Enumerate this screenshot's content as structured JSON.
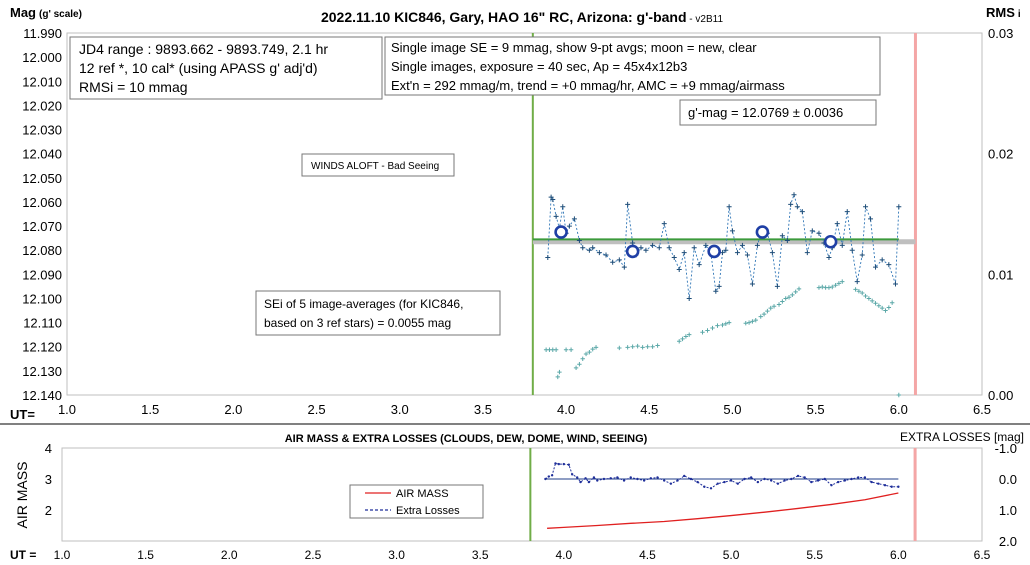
{
  "chart_data": [
    {
      "type": "scatter",
      "title": "2022.11.10 KIC846, Gary, HAO 16\" RC, Arizona: g'-band",
      "title_version": " - v2B11",
      "ylabel": "Mag",
      "ylabel_scale": "(g' scale)",
      "y2label": "RMS",
      "y2label_sub": "i",
      "xlabel": "UT=",
      "xlim": [
        1.0,
        6.5
      ],
      "ylim": [
        12.14,
        11.99
      ],
      "y2lim": [
        0.0,
        0.03
      ],
      "x_ticks": [
        "1.0",
        "1.5",
        "2.0",
        "2.5",
        "3.0",
        "3.5",
        "4.0",
        "4.5",
        "5.0",
        "5.5",
        "6.0",
        "6.5"
      ],
      "y_ticks": [
        "11.990",
        "12.000",
        "12.010",
        "12.020",
        "12.030",
        "12.040",
        "12.050",
        "12.060",
        "12.070",
        "12.080",
        "12.090",
        "12.100",
        "12.110",
        "12.120",
        "12.130",
        "12.140"
      ],
      "y2_ticks": [
        "0.03",
        "0.02",
        "0.01",
        "0.00"
      ],
      "annotations": {
        "box1": [
          "JD4 range : 9893.662 - 9893.749,  2.1 hr",
          "12 ref *, 10 cal* (using APASS g' adj'd)",
          "RMSi = 10 mmag"
        ],
        "box2": [
          "Single image SE = 9 mmag, show  9-pt avgs; moon = new, clear",
          "Single images, exposure = 40 sec, Ap = 45x4x12b3",
          "Ext'n = 292 mmag/m, trend = +0 mmag/hr, AMC = +9 mmag/airmass"
        ],
        "gmag": "g'-mag = 12.0769 ± 0.0036",
        "winds": "WINDS ALOFT - Bad Seeing",
        "sei": [
          "SEi of 5 image-averages (for KIC846,",
          "based on 3 ref stars) = 0.0055 mag"
        ]
      },
      "lines": {
        "start_ut": 3.8,
        "end_ut": 6.1,
        "mean_mag": 12.0765,
        "fit_mag": 12.0755
      },
      "series": [
        {
          "kind": "single_images_mag",
          "x": [
            3.89,
            3.91,
            3.92,
            3.94,
            3.96,
            3.98,
            4.0,
            4.02,
            4.05,
            4.08,
            4.1,
            4.14,
            4.16,
            4.2,
            4.24,
            4.28,
            4.32,
            4.35,
            4.37,
            4.4,
            4.42,
            4.45,
            4.48,
            4.52,
            4.56,
            4.59,
            4.62,
            4.65,
            4.68,
            4.71,
            4.74,
            4.77,
            4.8,
            4.84,
            4.87,
            4.9,
            4.92,
            4.94,
            4.96,
            4.98,
            5.0,
            5.03,
            5.06,
            5.09,
            5.12,
            5.15,
            5.18,
            5.21,
            5.24,
            5.27,
            5.3,
            5.33,
            5.35,
            5.37,
            5.39,
            5.42,
            5.45,
            5.48,
            5.52,
            5.55,
            5.58,
            5.6,
            5.63,
            5.66,
            5.69,
            5.72,
            5.75,
            5.78,
            5.8,
            5.83,
            5.86,
            5.9,
            5.94,
            5.98,
            6.0
          ],
          "y": [
            12.083,
            12.058,
            12.059,
            12.066,
            12.071,
            12.062,
            12.073,
            12.07,
            12.067,
            12.076,
            12.079,
            12.08,
            12.079,
            12.081,
            12.082,
            12.085,
            12.084,
            12.087,
            12.061,
            12.077,
            12.082,
            12.079,
            12.08,
            12.078,
            12.079,
            12.069,
            12.079,
            12.083,
            12.088,
            12.081,
            12.1,
            12.079,
            12.086,
            12.078,
            12.081,
            12.097,
            12.095,
            12.081,
            12.08,
            12.062,
            12.072,
            12.081,
            12.078,
            12.082,
            12.094,
            12.078,
            12.071,
            12.073,
            12.081,
            12.095,
            12.074,
            12.076,
            12.061,
            12.057,
            12.062,
            12.064,
            12.081,
            12.072,
            12.073,
            12.077,
            12.083,
            12.079,
            12.069,
            12.078,
            12.064,
            12.08,
            12.093,
            12.082,
            12.062,
            12.067,
            12.087,
            12.084,
            12.086,
            12.094,
            12.062
          ]
        },
        {
          "kind": "nine_point_averages_mag",
          "x": [
            3.97,
            4.4,
            4.89,
            5.18,
            5.59
          ],
          "y": [
            12.0725,
            12.0805,
            12.0805,
            12.0725,
            12.0765
          ]
        },
        {
          "kind": "rmsi_secondary",
          "x": [
            3.88,
            3.9,
            3.92,
            3.94,
            3.95,
            3.96,
            4.0,
            4.03,
            4.06,
            4.08,
            4.1,
            4.12,
            4.14,
            4.16,
            4.18,
            4.32,
            4.37,
            4.4,
            4.43,
            4.46,
            4.49,
            4.52,
            4.55,
            4.68,
            4.7,
            4.72,
            4.74,
            4.82,
            4.85,
            4.88,
            4.91,
            4.94,
            4.96,
            4.98,
            5.08,
            5.1,
            5.12,
            5.14,
            5.17,
            5.19,
            5.21,
            5.23,
            5.25,
            5.28,
            5.3,
            5.32,
            5.34,
            5.36,
            5.38,
            5.4,
            5.52,
            5.54,
            5.56,
            5.58,
            5.6,
            5.62,
            5.64,
            5.66,
            5.74,
            5.76,
            5.78,
            5.8,
            5.82,
            5.84,
            5.86,
            5.88,
            5.9,
            5.92,
            5.94,
            5.96,
            6.0
          ],
          "y": [
            0.00375,
            0.00375,
            0.00375,
            0.00375,
            0.0015,
            0.0019,
            0.00375,
            0.00375,
            0.00225,
            0.00255,
            0.003,
            0.0034,
            0.00355,
            0.0038,
            0.00395,
            0.0039,
            0.00395,
            0.004,
            0.00405,
            0.00395,
            0.004,
            0.004,
            0.0041,
            0.00445,
            0.00465,
            0.00485,
            0.005,
            0.0052,
            0.00535,
            0.00555,
            0.00575,
            0.0058,
            0.0059,
            0.006,
            0.00595,
            0.006,
            0.0061,
            0.0062,
            0.0065,
            0.0067,
            0.00695,
            0.0072,
            0.00735,
            0.0075,
            0.00775,
            0.008,
            0.0081,
            0.0083,
            0.00855,
            0.0088,
            0.0089,
            0.00895,
            0.0089,
            0.0089,
            0.00895,
            0.0091,
            0.00925,
            0.0094,
            0.00875,
            0.0086,
            0.00845,
            0.0082,
            0.008,
            0.0078,
            0.0076,
            0.0074,
            0.0072,
            0.007,
            0.00725,
            0.00765,
            0.0
          ]
        }
      ]
    },
    {
      "type": "line",
      "title": "AIR MASS & EXTRA LOSSES (CLOUDS, DEW, DOME, WIND, SEEING)",
      "ylabel": "AIR MASS",
      "y2label": "EXTRA LOSSES [mag]",
      "xlabel": "UT =",
      "xlim": [
        1.0,
        6.5
      ],
      "ylim": [
        1,
        4
      ],
      "y2lim": [
        2.0,
        -1.0
      ],
      "x_ticks": [
        "1.0",
        "1.5",
        "2.0",
        "2.5",
        "3.0",
        "3.5",
        "4.0",
        "4.5",
        "5.0",
        "5.5",
        "6.0",
        "6.5"
      ],
      "y_ticks": [
        "4",
        "3",
        "2"
      ],
      "y2_ticks": [
        "-1.0",
        "0.0",
        "1.0",
        "2.0"
      ],
      "legend": [
        "AIR MASS",
        "Extra Losses"
      ],
      "series": [
        {
          "name": "AIR MASS",
          "x": [
            3.9,
            4.0,
            4.2,
            4.4,
            4.6,
            4.8,
            5.0,
            5.2,
            5.4,
            5.6,
            5.8,
            6.0
          ],
          "y": [
            1.41,
            1.44,
            1.5,
            1.57,
            1.63,
            1.72,
            1.82,
            1.93,
            2.05,
            2.18,
            2.33,
            2.55
          ]
        },
        {
          "name": "Extra Losses",
          "x": [
            3.89,
            3.91,
            3.93,
            3.95,
            3.97,
            4.0,
            4.03,
            4.05,
            4.08,
            4.1,
            4.13,
            4.15,
            4.18,
            4.2,
            4.24,
            4.28,
            4.32,
            4.36,
            4.4,
            4.44,
            4.48,
            4.52,
            4.56,
            4.6,
            4.64,
            4.68,
            4.72,
            4.76,
            4.8,
            4.84,
            4.88,
            4.92,
            4.96,
            5.0,
            5.04,
            5.08,
            5.12,
            5.16,
            5.2,
            5.24,
            5.28,
            5.32,
            5.36,
            5.4,
            5.44,
            5.48,
            5.52,
            5.56,
            5.6,
            5.64,
            5.68,
            5.72,
            5.76,
            5.8,
            5.84,
            5.88,
            5.92,
            5.96,
            6.0
          ],
          "y": [
            0.0,
            -0.08,
            -0.12,
            -0.5,
            -0.48,
            -0.48,
            -0.46,
            -0.15,
            -0.05,
            0.1,
            -0.02,
            0.1,
            -0.05,
            0.05,
            0.0,
            -0.02,
            -0.05,
            0.05,
            -0.05,
            0.0,
            0.05,
            -0.02,
            -0.05,
            0.05,
            0.15,
            0.05,
            -0.1,
            0.0,
            0.1,
            0.25,
            0.3,
            0.15,
            0.1,
            0.05,
            0.15,
            0.0,
            -0.05,
            0.1,
            0.0,
            0.05,
            0.15,
            0.05,
            0.0,
            -0.1,
            -0.05,
            0.1,
            0.05,
            0.0,
            0.2,
            0.1,
            0.05,
            0.0,
            -0.05,
            -0.05,
            0.1,
            0.15,
            0.2,
            0.25,
            0.25
          ]
        }
      ],
      "lines": {
        "start_ut": 3.8,
        "end_ut": 6.1,
        "zero_loss": 0.0
      }
    }
  ]
}
